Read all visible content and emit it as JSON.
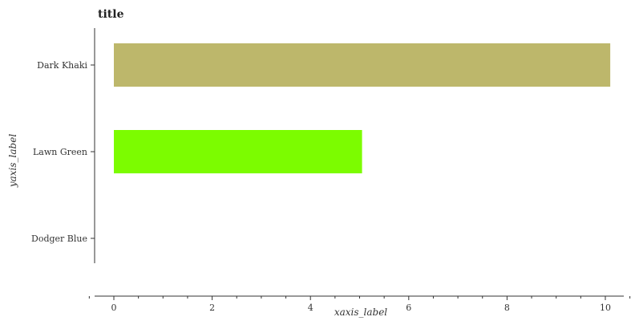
{
  "chart_data": {
    "type": "bar",
    "orientation": "horizontal",
    "title": "title",
    "xlabel": "xaxis_label",
    "ylabel": "yaxis_label",
    "categories": [
      "Dodger Blue",
      "Lawn Green",
      "Dark Khaki"
    ],
    "values": [
      0,
      5.05,
      10.1
    ],
    "colors": [
      "#1e90ff",
      "#7cfc00",
      "#bdb76b"
    ],
    "xlim": [
      0,
      10.5
    ],
    "xticks": [
      0,
      2,
      4,
      6,
      8,
      10
    ],
    "xtick_labels": [
      "0",
      "2",
      "4",
      "6",
      "8",
      "10"
    ],
    "grid": false,
    "legend": "none"
  }
}
